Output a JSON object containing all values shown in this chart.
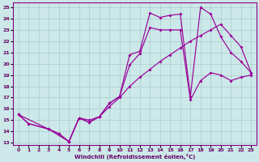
{
  "bg_color": "#cce8e8",
  "line_color": "#990099",
  "grid_color": "#aacccc",
  "xlabel": "Windchill (Refroidissement éolien,°C)",
  "xlim": [
    -0.5,
    23.5
  ],
  "ylim": [
    12.8,
    25.4
  ],
  "xticks": [
    0,
    1,
    2,
    3,
    4,
    5,
    6,
    7,
    8,
    9,
    10,
    11,
    12,
    13,
    14,
    15,
    16,
    17,
    18,
    19,
    20,
    21,
    22,
    23
  ],
  "yticks": [
    13,
    14,
    15,
    16,
    17,
    18,
    19,
    20,
    21,
    22,
    23,
    24,
    25
  ],
  "line1_x": [
    0,
    1,
    3,
    4,
    5,
    6,
    7,
    8,
    9,
    10,
    11,
    12,
    13,
    14,
    15,
    16,
    17,
    18,
    19,
    20,
    21,
    22,
    23
  ],
  "line1_y": [
    15.5,
    14.7,
    14.2,
    13.8,
    13.1,
    15.2,
    14.8,
    15.3,
    16.5,
    17.1,
    20.8,
    21.1,
    24.5,
    24.1,
    24.3,
    24.4,
    17.1,
    25.0,
    24.4,
    22.4,
    21.0,
    20.2,
    19.2
  ],
  "line2_x": [
    0,
    1,
    3,
    5,
    6,
    7,
    8,
    9,
    10,
    11,
    12,
    13,
    14,
    15,
    16,
    17,
    18,
    19,
    20,
    21,
    22,
    23
  ],
  "line2_y": [
    15.5,
    14.7,
    14.2,
    13.1,
    15.2,
    14.8,
    15.3,
    16.2,
    17.0,
    18.0,
    18.8,
    19.5,
    20.2,
    20.8,
    21.4,
    22.0,
    22.5,
    23.0,
    23.5,
    22.5,
    21.5,
    19.2
  ],
  "line3_x": [
    0,
    3,
    4,
    5,
    6,
    7,
    8,
    9,
    10,
    11,
    12,
    13,
    14,
    15,
    16,
    17,
    18,
    19,
    20,
    21,
    22,
    23
  ],
  "line3_y": [
    15.5,
    14.2,
    13.8,
    13.1,
    15.2,
    15.0,
    15.3,
    16.5,
    17.1,
    19.9,
    20.9,
    23.2,
    23.0,
    23.0,
    23.0,
    16.8,
    18.5,
    19.2,
    19.0,
    18.5,
    18.8,
    19.0
  ]
}
